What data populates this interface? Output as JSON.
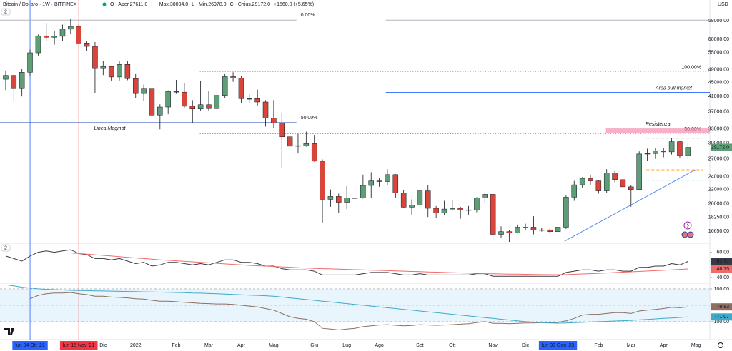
{
  "chart_data": {
    "type": "candlestick",
    "title": "Bitcoin / Dollaro · 1W · BITFINEX",
    "ohlc_legend": [
      "O - Aper.27611.0",
      "H - Max.30034.0",
      "L - Min.26978.0",
      "C - Chius.29172.0",
      "+1560.0 (+5.65%)"
    ],
    "pane_badges": [
      "2",
      "2"
    ],
    "currency": "USD",
    "price_label": "29172.0",
    "log_scale": true,
    "xlim": [
      -0.7,
      86.7
    ],
    "xticks": [
      {
        "value": 3,
        "label": "lun 04 Ott '21",
        "color": "#2962ff"
      },
      {
        "value": 9,
        "label": "lun 15 Nov '21",
        "color": "#f23645"
      },
      {
        "value": 12,
        "label": "Dic"
      },
      {
        "value": 16,
        "label": "2022"
      },
      {
        "value": 21,
        "label": "Feb"
      },
      {
        "value": 25,
        "label": "Mar"
      },
      {
        "value": 29,
        "label": "Apr"
      },
      {
        "value": 33,
        "label": "Mag"
      },
      {
        "value": 38,
        "label": "Giu"
      },
      {
        "value": 42,
        "label": "Lug"
      },
      {
        "value": 46,
        "label": "Ago"
      },
      {
        "value": 51,
        "label": "Set"
      },
      {
        "value": 55,
        "label": "Ott"
      },
      {
        "value": 60,
        "label": "Nov"
      },
      {
        "value": 64,
        "label": "Dic"
      },
      {
        "value": 68,
        "label": "lun 02 Gen '23",
        "color": "#2962ff"
      },
      {
        "value": 73,
        "label": "Feb"
      },
      {
        "value": 77,
        "label": "Mar"
      },
      {
        "value": 81,
        "label": "Apr"
      },
      {
        "value": 85,
        "label": "Mag"
      }
    ],
    "ylim": [
      15430,
      73800
    ],
    "yticks": [
      {
        "value": 68000,
        "label": "68000.00"
      },
      {
        "value": 60000,
        "label": "60000.00"
      },
      {
        "value": 55000,
        "label": "55000.00"
      },
      {
        "value": 49000,
        "label": "49000.00"
      },
      {
        "value": 45000,
        "label": "45000.00"
      },
      {
        "value": 41000,
        "label": "41000.00"
      },
      {
        "value": 37000,
        "label": "37000.00"
      },
      {
        "value": 33000,
        "label": "33000.00"
      },
      {
        "value": 30000,
        "label": "30000.00"
      },
      {
        "value": 27000,
        "label": "27000.00"
      },
      {
        "value": 24000,
        "label": "24000.00"
      },
      {
        "value": 22000,
        "label": "22000.00"
      },
      {
        "value": 20000,
        "label": "20000.00"
      },
      {
        "value": 18250,
        "label": "18250.00"
      },
      {
        "value": 16650,
        "label": "16650.00"
      }
    ],
    "candles": {
      "up_color": "#5e9e77",
      "down_color": "#d9453a",
      "open": [
        46000,
        47200,
        43200,
        48200,
        54900,
        61500,
        60900,
        61300,
        64300,
        65500,
        58600,
        57300,
        49400,
        50100,
        46700,
        50800,
        46200,
        41800,
        43100,
        36200,
        38200,
        42400,
        42200,
        38400,
        37700,
        38800,
        37800,
        41300,
        46800,
        46400,
        40400,
        40400,
        39500,
        35500,
        34300,
        31300,
        29400,
        29500,
        29900,
        26600,
        20600,
        21000,
        20200,
        20800,
        20800,
        22600,
        23300,
        23200,
        24300,
        21500,
        19550,
        19800,
        21800,
        19400,
        18800,
        19300,
        19400,
        19200,
        19200,
        20800,
        21300,
        16300,
        16600,
        16450,
        17100,
        17100,
        16800,
        16800,
        16600,
        17100,
        20900,
        22700,
        23700,
        23300,
        21800,
        24600,
        23500,
        22400,
        22000,
        27900,
        27990,
        28450,
        28300,
        30300,
        27611
      ],
      "high": [
        48800,
        47400,
        49200,
        56100,
        62000,
        67000,
        63700,
        66300,
        69000,
        66300,
        59500,
        59000,
        51900,
        50200,
        51900,
        52100,
        47600,
        44400,
        43500,
        38900,
        42700,
        45800,
        44800,
        40000,
        45400,
        42400,
        42300,
        47600,
        48200,
        47000,
        41600,
        42900,
        40000,
        40000,
        36800,
        31500,
        31900,
        32400,
        31700,
        26900,
        22000,
        21400,
        22500,
        21800,
        24300,
        24700,
        23700,
        25200,
        24400,
        21900,
        20600,
        22800,
        22700,
        19700,
        20400,
        20500,
        19600,
        19700,
        20900,
        21500,
        21500,
        17200,
        16800,
        17400,
        17500,
        18400,
        17000,
        16900,
        17200,
        21200,
        23300,
        23900,
        24300,
        23400,
        25200,
        25000,
        23900,
        22600,
        28400,
        28900,
        29100,
        29100,
        31000,
        30400,
        30034
      ],
      "low": [
        42800,
        39600,
        41000,
        46900,
        53900,
        59500,
        58000,
        59500,
        62300,
        58300,
        55500,
        42000,
        47300,
        45600,
        45600,
        45700,
        40600,
        39700,
        34000,
        32900,
        36400,
        41700,
        38000,
        34300,
        37200,
        37200,
        37200,
        40600,
        45200,
        39200,
        39200,
        38600,
        33500,
        33200,
        25300,
        28700,
        28000,
        29300,
        26500,
        17600,
        19600,
        18800,
        19300,
        18900,
        20700,
        20800,
        22400,
        22700,
        20800,
        19500,
        18600,
        18600,
        18300,
        18200,
        18500,
        19100,
        18100,
        18600,
        18900,
        20100,
        15600,
        15900,
        15500,
        16400,
        16800,
        16300,
        16600,
        16400,
        16500,
        16900,
        20400,
        22300,
        22700,
        21400,
        21500,
        23100,
        22000,
        19600,
        21900,
        26600,
        27000,
        27300,
        27800,
        27100,
        26978
      ],
      "close": [
        47200,
        43200,
        48200,
        54900,
        61500,
        60900,
        61300,
        64300,
        65500,
        58600,
        57300,
        49400,
        50100,
        46700,
        50800,
        46200,
        41800,
        43100,
        36200,
        38200,
        42400,
        42200,
        38400,
        37700,
        38800,
        37800,
        41300,
        46800,
        46400,
        40400,
        40400,
        39500,
        35500,
        34300,
        31300,
        29400,
        29500,
        29900,
        26600,
        20600,
        21000,
        20200,
        20800,
        20800,
        22600,
        23300,
        23200,
        24300,
        21500,
        19550,
        19800,
        21800,
        19400,
        18800,
        19300,
        19400,
        19200,
        19200,
        20800,
        21300,
        16300,
        16600,
        16450,
        17100,
        17100,
        16800,
        16800,
        16600,
        17100,
        20900,
        22700,
        23700,
        23300,
        21800,
        24600,
        23500,
        22400,
        22000,
        27900,
        27990,
        28450,
        28300,
        30300,
        27612,
        29172
      ]
    },
    "drawings": [
      {
        "kind": "hline",
        "price": 34400,
        "from": -0.7,
        "to": 35.8,
        "style": "solid",
        "color": "#1e40af",
        "label": "Linea Maginot",
        "label_color": "#e8475a",
        "pct": "50.00%",
        "pct_color": "#2962ff"
      },
      {
        "kind": "hline",
        "price": 68300,
        "from": -0.7,
        "to": 35.8,
        "style": "solid",
        "color": "#b2b5be",
        "pct": "0.00%",
        "pct_color": "#9598a1"
      },
      {
        "kind": "hline",
        "price": 68300,
        "from": 46.8,
        "to": 86.7,
        "style": "solid",
        "color": "#b2b5be"
      },
      {
        "kind": "hline",
        "price": 48400,
        "from": 23.9,
        "to": 86.7,
        "style": "dotted",
        "color": "#b2b5be",
        "pct": "100.00%",
        "pct_color": "#9598a1"
      },
      {
        "kind": "hline",
        "price": 32000,
        "from": 23.9,
        "to": 86.7,
        "style": "dotted",
        "color": "#e53935",
        "pct": "50.00%",
        "pct_color": "#e8475a"
      },
      {
        "kind": "hline",
        "price": 42100,
        "from": 46.8,
        "to": 86.7,
        "style": "solid",
        "color": "#2962ff",
        "label": "Area bull market",
        "label_color": "#2962ff"
      },
      {
        "kind": "zone",
        "prices": [
          32100,
          33100
        ],
        "from": 73.9,
        "to": 86.7,
        "color": "#f48fb1",
        "label": "Resistenza",
        "label_color": "#e8475a"
      },
      {
        "kind": "trend",
        "points": [
          [
            68.8,
            15560
          ],
          [
            84.9,
            25090
          ]
        ],
        "color": "#5b8def"
      },
      {
        "kind": "hline",
        "price": 31000,
        "from": 78.9,
        "to": 85.9,
        "style": "dashed",
        "color": "#b2b5be"
      },
      {
        "kind": "hline",
        "price": 25100,
        "from": 78.9,
        "to": 85.9,
        "style": "dashed",
        "color": "#ff9800"
      },
      {
        "kind": "hline",
        "price": 23400,
        "from": 78.9,
        "to": 85.9,
        "style": "dashed",
        "color": "#26c6da"
      }
    ],
    "panes": [
      {
        "ylim": [
          36,
          66
        ],
        "yticks": [
          {
            "value": 60,
            "label": "60.00"
          },
          {
            "value": 40,
            "label": "40.00"
          }
        ],
        "series": [
          {
            "color": "#363a45",
            "values": [
              57,
              55,
              53,
              57,
              60,
              61,
              60,
              61,
              62,
              59,
              58,
              55,
              55,
              54,
              55,
              53,
              51,
              52,
              49,
              50,
              52,
              52,
              51,
              50,
              51,
              50,
              52,
              54,
              54,
              52,
              52,
              51,
              49,
              49,
              47,
              46,
              46,
              46,
              45,
              42,
              42,
              42,
              42,
              42,
              43,
              44,
              44,
              44,
              43,
              42,
              42,
              43,
              42,
              42,
              42,
              42,
              42,
              42,
              43,
              43,
              41,
              41,
              41,
              41,
              41,
              41,
              41,
              41,
              41,
              44,
              45,
              46,
              46,
              45,
              46,
              46,
              45,
              45,
              48,
              48,
              49,
              49,
              51,
              50,
              52.72
            ]
          },
          {
            "color": "#ef6c6c",
            "values": [
              null,
              null,
              null,
              null,
              null,
              null,
              null,
              null,
              59.5,
              59,
              58.5,
              58,
              57.5,
              57,
              56.5,
              56,
              55.5,
              55,
              54.5,
              54,
              53.6,
              53.2,
              52.8,
              52.4,
              52,
              51.6,
              51.2,
              50.8,
              50.4,
              50,
              49.6,
              49.3,
              49,
              48.7,
              48.4,
              48.1,
              47.8,
              47.5,
              47.2,
              47,
              46.8,
              46.6,
              46.4,
              46.2,
              46,
              45.8,
              45.6,
              45.4,
              45.2,
              45,
              44.8,
              44.6,
              44.4,
              44.2,
              44,
              43.8,
              43.6,
              43.4,
              43.2,
              43,
              42.9,
              42.8,
              42.7,
              42.6,
              42.5,
              42.4,
              42.3,
              42.2,
              42.2,
              42.3,
              42.5,
              42.8,
              43,
              43.3,
              43.6,
              43.9,
              44.2,
              44.5,
              44.8,
              45.1,
              45.4,
              45.7,
              46,
              46.4,
              46.75
            ]
          }
        ]
      },
      {
        "ylim": [
          -148,
          130
        ],
        "yticks": [
          {
            "value": 100,
            "label": "100.00"
          },
          {
            "value": -100,
            "label": "-100.00"
          }
        ],
        "band_color": "#e3f2fd",
        "series": [
          {
            "color": "#8d6e63",
            "values": [
              null,
              null,
              null,
              40,
              60,
              70,
              75,
              75,
              78,
              70,
              65,
              55,
              55,
              50,
              48,
              45,
              40,
              38,
              30,
              25,
              25,
              22,
              18,
              15,
              12,
              10,
              8,
              8,
              5,
              0,
              -5,
              -10,
              -20,
              -30,
              -50,
              -70,
              -80,
              -85,
              -100,
              -140,
              -145,
              -150,
              -145,
              -140,
              -130,
              -125,
              -120,
              -118,
              -122,
              -125,
              -123,
              -118,
              -120,
              -122,
              -120,
              -118,
              -115,
              -112,
              -105,
              -100,
              -110,
              -110,
              -112,
              -110,
              -108,
              -108,
              -106,
              -105,
              -104,
              -95,
              -80,
              -60,
              -55,
              -55,
              -50,
              -45,
              -45,
              -50,
              -35,
              -30,
              -25,
              -20,
              -12,
              -15,
              -9.83
            ]
          },
          {
            "color": "#3fa9c9",
            "values": [
              125,
              118,
              110,
              105,
              100,
              97,
              95,
              93,
              91,
              90,
              89,
              88,
              87,
              86,
              85,
              84,
              83,
              82,
              81,
              80,
              79,
              78,
              77,
              75,
              74,
              72,
              70,
              68,
              66,
              64,
              62,
              60,
              58,
              55,
              50,
              45,
              40,
              35,
              30,
              25,
              20,
              15,
              10,
              5,
              0,
              -5,
              -10,
              -15,
              -20,
              -25,
              -30,
              -35,
              -40,
              -45,
              -50,
              -55,
              -60,
              -65,
              -70,
              -75,
              -80,
              -85,
              -90,
              -95,
              -100,
              -103,
              -106,
              -108,
              -109,
              -108,
              -106,
              -104,
              -102,
              -100,
              -98,
              -96,
              -94,
              -92,
              -89,
              -86,
              -83,
              -80,
              -77,
              -74,
              -71.07
            ]
          }
        ]
      }
    ]
  }
}
